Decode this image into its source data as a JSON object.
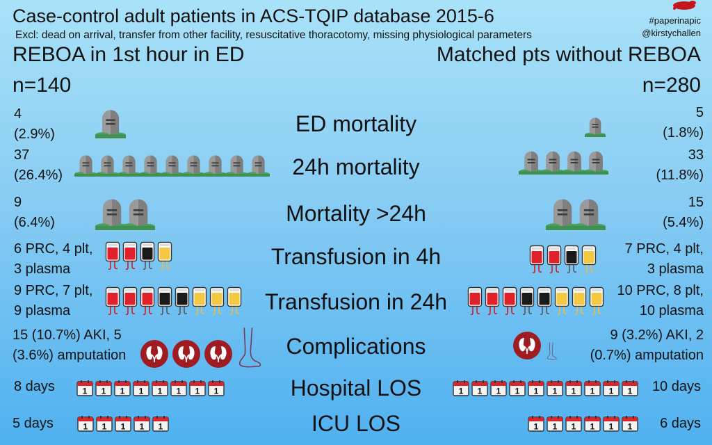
{
  "header": {
    "title": "Case-control adult patients in ACS-TQIP database 2015-6",
    "subtitle": "Excl: dead on arrival, transfer from other facility, resuscitative thoracotomy, missing physiological parameters",
    "hashtag": "#paperinapic",
    "author": "@kirstychallen"
  },
  "groups": {
    "left": {
      "label": "REBOA in 1st hour in ED",
      "n": "n=140"
    },
    "right": {
      "label": "Matched pts without REBOA",
      "n": "n=280"
    }
  },
  "rows": {
    "ed_mortality": {
      "label": "ED mortality",
      "left_count": "4",
      "left_pct": "(2.9%)",
      "right_count": "5",
      "right_pct": "(1.8%)"
    },
    "mortality_24h": {
      "label": "24h mortality",
      "left_count": "37",
      "left_pct": "(26.4%)",
      "right_count": "33",
      "right_pct": "(11.8%)"
    },
    "mortality_gt24h": {
      "label": "Mortality >24h",
      "left_count": "9",
      "left_pct": "(6.4%)",
      "right_count": "15",
      "right_pct": "(5.4%)"
    },
    "transfusion_4h": {
      "label": "Transfusion in 4h",
      "left_line1": "6 PRC, 4 plt,",
      "left_line2": "3 plasma",
      "right_line1": "7 PRC, 4 plt,",
      "right_line2": "3 plasma"
    },
    "transfusion_24h": {
      "label": "Transfusion in 24h",
      "left_line1": "9 PRC, 7 plt,",
      "left_line2": "9 plasma",
      "right_line1": "10 PRC, 8 plt,",
      "right_line2": "10 plasma"
    },
    "complications": {
      "label": "Complications",
      "left_line1": "15 (10.7%) AKI, 5",
      "left_line2": "(3.6%) amputation",
      "right_line1": "9 (3.2%) AKI, 2",
      "right_line2": "(0.7%) amputation"
    },
    "hospital_los": {
      "label": "Hospital LOS",
      "left_value": "8 days",
      "right_value": "10 days"
    },
    "icu_los": {
      "label": "ICU LOS",
      "left_value": "5 days",
      "right_value": "6 days"
    }
  },
  "calendar_digit": "1",
  "icon_names": [
    "gravestone-icon",
    "blood-bag-icon",
    "platelet-bag-icon",
    "plasma-bag-icon",
    "kidneys-icon",
    "foot-icon",
    "calendar-icon",
    "paint-splat-logo"
  ],
  "colors": {
    "background_top": "#a9e2f8",
    "background_bottom": "#4fb1f0",
    "blood": "#e0202a",
    "plasma": "#f5c842",
    "kidney": "#9e1c22"
  }
}
